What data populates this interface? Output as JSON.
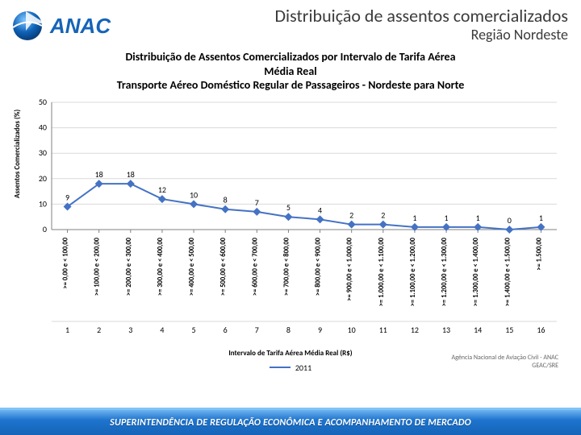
{
  "header": {
    "logo_text": "ANAC",
    "logo_sub": "",
    "main_title": "Distribuição de assentos comercializados",
    "sub_title": "Região Nordeste"
  },
  "chart": {
    "type": "line",
    "title_line1": "Distribuição de Assentos Comercializados por Intervalo de Tarifa Aérea",
    "title_line2": "Média Real",
    "title_line3": "Transporte Aéreo Doméstico Regular de Passageiros - Nordeste para Norte",
    "ylabel": "Assentos Comercializados (%)",
    "xlabel": "Intervalo de Tarifa Aérea Média Real (R$)",
    "ylim": [
      0,
      50
    ],
    "ytick_step": 10,
    "grid_color": "#d9d9d9",
    "axis_color": "#808080",
    "background_color": "#ffffff",
    "series": [
      {
        "name": "2011",
        "color": "#4472c4",
        "line_width": 2,
        "marker": "diamond",
        "marker_size": 5,
        "values": [
          9,
          18,
          18,
          12,
          10,
          8,
          7,
          5,
          4,
          2,
          2,
          1,
          1,
          1,
          0,
          1
        ]
      }
    ],
    "categories_rotated": [
      ">= 0,00 e < 100,00",
      ">= 100,00 e < 200,00",
      ">= 200,00 e < 300,00",
      ">= 300,00 e < 400,00",
      ">= 400,00 e < 500,00",
      ">= 500,00 e < 600,00",
      ">= 600,00 e < 700,00",
      ">= 700,00 e < 800,00",
      ">= 800,00 e < 900,00",
      ">= 900,00 e < 1.000,00",
      ">= 1.000,00 e < 1.100,00",
      ">= 1.100,00 e < 1.200,00",
      ">= 1.200,00 e < 1.300,00",
      ">= 1.300,00 e < 1.400,00",
      ">= 1.400,00 e < 1.500,00",
      ">= 1.500,00"
    ],
    "category_indices": [
      1,
      2,
      3,
      4,
      5,
      6,
      7,
      8,
      9,
      10,
      11,
      12,
      13,
      14,
      15,
      16
    ],
    "source_line1": "Agência Nacional de Aviação Civil - ANAC",
    "source_line2": "GEAC/SRE"
  },
  "footer": {
    "text": "SUPERINTENDÊNCIA DE REGULAÇÃO ECONÔMICA E ACOMPANHAMENTO DE MERCADO"
  }
}
